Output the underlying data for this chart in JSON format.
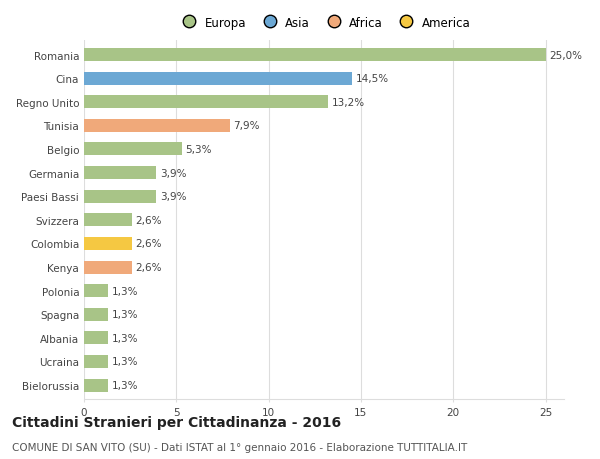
{
  "countries": [
    "Romania",
    "Cina",
    "Regno Unito",
    "Tunisia",
    "Belgio",
    "Germania",
    "Paesi Bassi",
    "Svizzera",
    "Colombia",
    "Kenya",
    "Polonia",
    "Spagna",
    "Albania",
    "Ucraina",
    "Bielorussia"
  ],
  "values": [
    25.0,
    14.5,
    13.2,
    7.9,
    5.3,
    3.9,
    3.9,
    2.6,
    2.6,
    2.6,
    1.3,
    1.3,
    1.3,
    1.3,
    1.3
  ],
  "labels": [
    "25,0%",
    "14,5%",
    "13,2%",
    "7,9%",
    "5,3%",
    "3,9%",
    "3,9%",
    "2,6%",
    "2,6%",
    "2,6%",
    "1,3%",
    "1,3%",
    "1,3%",
    "1,3%",
    "1,3%"
  ],
  "colors": [
    "#a8c487",
    "#6ca8d4",
    "#a8c487",
    "#f0a97a",
    "#a8c487",
    "#a8c487",
    "#a8c487",
    "#a8c487",
    "#f5c842",
    "#f0a97a",
    "#a8c487",
    "#a8c487",
    "#a8c487",
    "#a8c487",
    "#a8c487"
  ],
  "legend_labels": [
    "Europa",
    "Asia",
    "Africa",
    "America"
  ],
  "legend_colors": [
    "#a8c487",
    "#6ca8d4",
    "#f0a97a",
    "#f5c842"
  ],
  "title": "Cittadini Stranieri per Cittadinanza - 2016",
  "subtitle": "COMUNE DI SAN VITO (SU) - Dati ISTAT al 1° gennaio 2016 - Elaborazione TUTTITALIA.IT",
  "xlim": [
    0,
    26
  ],
  "xticks": [
    0,
    5,
    10,
    15,
    20,
    25
  ],
  "bg_color": "#ffffff",
  "grid_color": "#dddddd",
  "bar_height": 0.55,
  "title_fontsize": 10,
  "subtitle_fontsize": 7.5,
  "label_fontsize": 7.5,
  "tick_fontsize": 7.5,
  "legend_fontsize": 8.5
}
